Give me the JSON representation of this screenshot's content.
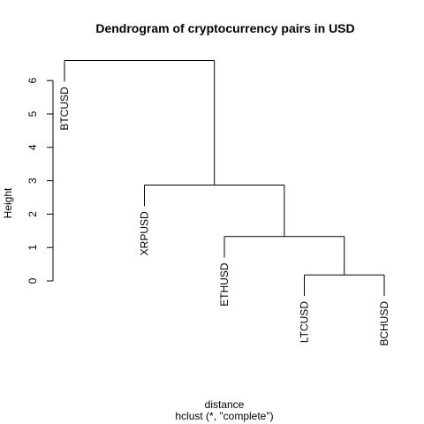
{
  "chart_data": {
    "type": "dendrogram",
    "title": "Dendrogram of cryptocurrency pairs in USD",
    "xlabel": "distance",
    "sublabel": "hclust (*, \"complete\")",
    "ylabel": "Height",
    "ylim": [
      0,
      6.6
    ],
    "yticks": [
      "0",
      "1",
      "2",
      "3",
      "4",
      "5",
      "6"
    ],
    "grid": false,
    "leaves": [
      "BTCUSD",
      "XRPUSD",
      "ETHUSD",
      "LTCUSD",
      "BCHUSD"
    ],
    "merges": [
      {
        "left": "LTCUSD",
        "right": "BCHUSD",
        "height": 0.18
      },
      {
        "left": "ETHUSD",
        "right": "LTCUSD+BCHUSD",
        "height": 1.33
      },
      {
        "left": "XRPUSD",
        "right": "ETHUSD+LTCUSD+BCHUSD",
        "height": 2.87
      },
      {
        "left": "BTCUSD",
        "right": "XRPUSD+ETHUSD+LTCUSD+BCHUSD",
        "height": 6.6
      }
    ]
  }
}
